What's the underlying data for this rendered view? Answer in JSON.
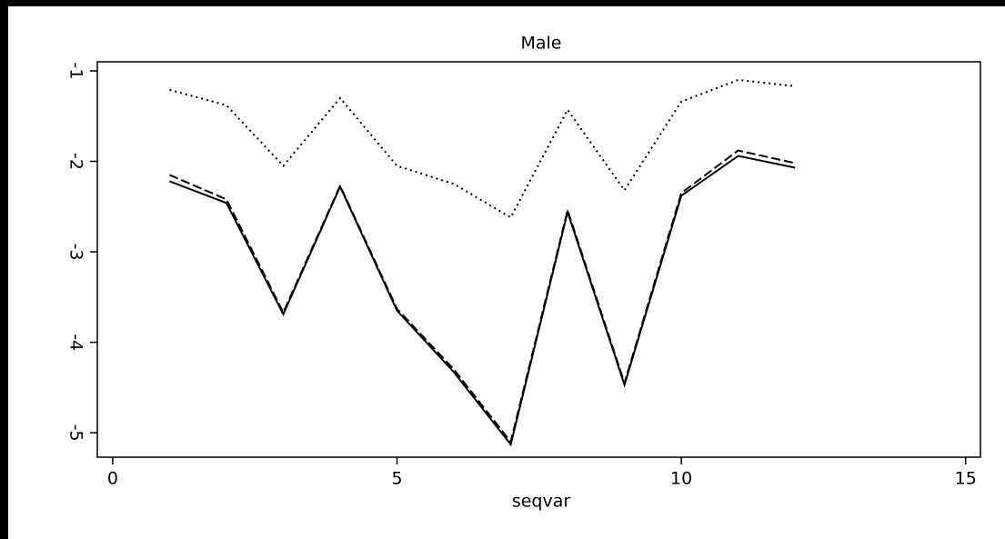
{
  "chart_data": {
    "type": "line",
    "title": "Male",
    "x_label": "seqvar",
    "x": [
      1,
      2,
      3,
      4,
      5,
      6,
      7,
      8,
      9,
      10,
      11,
      12
    ],
    "series": [
      {
        "color": "#000000",
        "dash": "dotted",
        "values": [
          -1.21,
          -1.38,
          -2.05,
          -1.3,
          -2.05,
          -2.25,
          -2.62,
          -1.43,
          -2.32,
          -1.34,
          -1.1,
          -1.17
        ]
      },
      {
        "color": "#000000",
        "dash": "solid",
        "values": [
          -2.22,
          -2.46,
          -3.69,
          -2.28,
          -3.65,
          -4.33,
          -5.13,
          -2.56,
          -4.47,
          -2.38,
          -1.94,
          -2.07
        ]
      },
      {
        "color": "#000000",
        "dash": "dashed",
        "values": [
          -2.15,
          -2.42,
          -3.67,
          -2.27,
          -3.63,
          -4.3,
          -5.1,
          -2.54,
          -4.45,
          -2.35,
          -1.88,
          -2.02
        ]
      }
    ],
    "xlim": [
      -0.27,
      15.26
    ],
    "xticks": [
      0,
      5,
      10,
      15
    ],
    "ylim": [
      -5.27,
      -0.9
    ],
    "yticks": [
      -1,
      -2,
      -3,
      -4,
      -5
    ],
    "grid": false
  }
}
